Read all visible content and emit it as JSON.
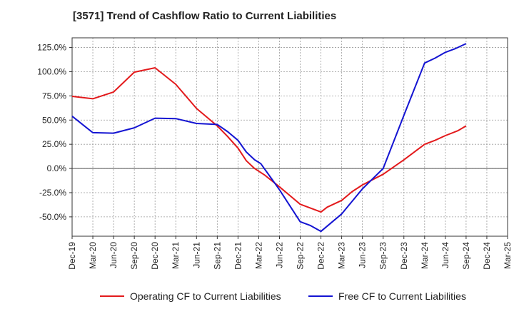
{
  "chart_data": {
    "type": "line",
    "title": "[3571]  Trend of Cashflow Ratio to Current Liabilities",
    "xlabel": "",
    "ylabel": "",
    "ylim": [
      -70,
      135
    ],
    "yticks": [
      "125.0%",
      "100.0%",
      "75.0%",
      "50.0%",
      "25.0%",
      "0.0%",
      "-25.0%",
      "-50.0%"
    ],
    "ytick_values": [
      125,
      100,
      75,
      50,
      25,
      0,
      -25,
      -50
    ],
    "x_tick_labels": [
      "Dec-19",
      "Mar-20",
      "Jun-20",
      "Sep-20",
      "Dec-20",
      "Mar-21",
      "Jun-21",
      "Sep-21",
      "Dec-21",
      "Mar-22",
      "Jun-22",
      "Sep-22",
      "Dec-22",
      "Mar-23",
      "Jun-23",
      "Sep-23",
      "Dec-23",
      "Mar-24",
      "Jun-24",
      "Sep-24",
      "Dec-24",
      "Mar-25"
    ],
    "grid": true,
    "legend_position": "bottom",
    "series": [
      {
        "name": "Operating CF to Current Liabilities",
        "color": "#e31a1c",
        "points": [
          [
            0,
            74.5
          ],
          [
            1,
            72
          ],
          [
            2,
            79
          ],
          [
            3,
            99.5
          ],
          [
            4,
            104
          ],
          [
            5,
            87
          ],
          [
            6,
            62
          ],
          [
            7,
            44
          ],
          [
            7.5,
            33
          ],
          [
            8,
            21
          ],
          [
            8.4,
            8
          ],
          [
            8.8,
            0
          ],
          [
            9.3,
            -7
          ],
          [
            10,
            -19
          ],
          [
            10.5,
            -28
          ],
          [
            11,
            -37
          ],
          [
            12,
            -45
          ],
          [
            12.3,
            -40
          ],
          [
            13,
            -33
          ],
          [
            13.5,
            -24
          ],
          [
            14,
            -17
          ],
          [
            15,
            -6
          ],
          [
            16,
            9
          ],
          [
            17,
            25
          ],
          [
            17.5,
            29
          ],
          [
            18,
            34
          ],
          [
            18.6,
            39
          ],
          [
            19,
            44
          ]
        ]
      },
      {
        "name": "Free CF to Current Liabilities",
        "color": "#1414d2",
        "points": [
          [
            0,
            54
          ],
          [
            1,
            37
          ],
          [
            2,
            36.5
          ],
          [
            3,
            42
          ],
          [
            4,
            52
          ],
          [
            5,
            51.5
          ],
          [
            6,
            46.5
          ],
          [
            7,
            45.5
          ],
          [
            7.5,
            38
          ],
          [
            8,
            29
          ],
          [
            8.4,
            17
          ],
          [
            8.8,
            9
          ],
          [
            9.1,
            5
          ],
          [
            10,
            -22
          ],
          [
            11,
            -55
          ],
          [
            11.5,
            -59
          ],
          [
            12,
            -65
          ],
          [
            13,
            -47
          ],
          [
            14,
            -21
          ],
          [
            15,
            0
          ],
          [
            16,
            55
          ],
          [
            17,
            109
          ],
          [
            17.5,
            114
          ],
          [
            18,
            120
          ],
          [
            18.5,
            124
          ],
          [
            19,
            129
          ]
        ]
      }
    ]
  }
}
